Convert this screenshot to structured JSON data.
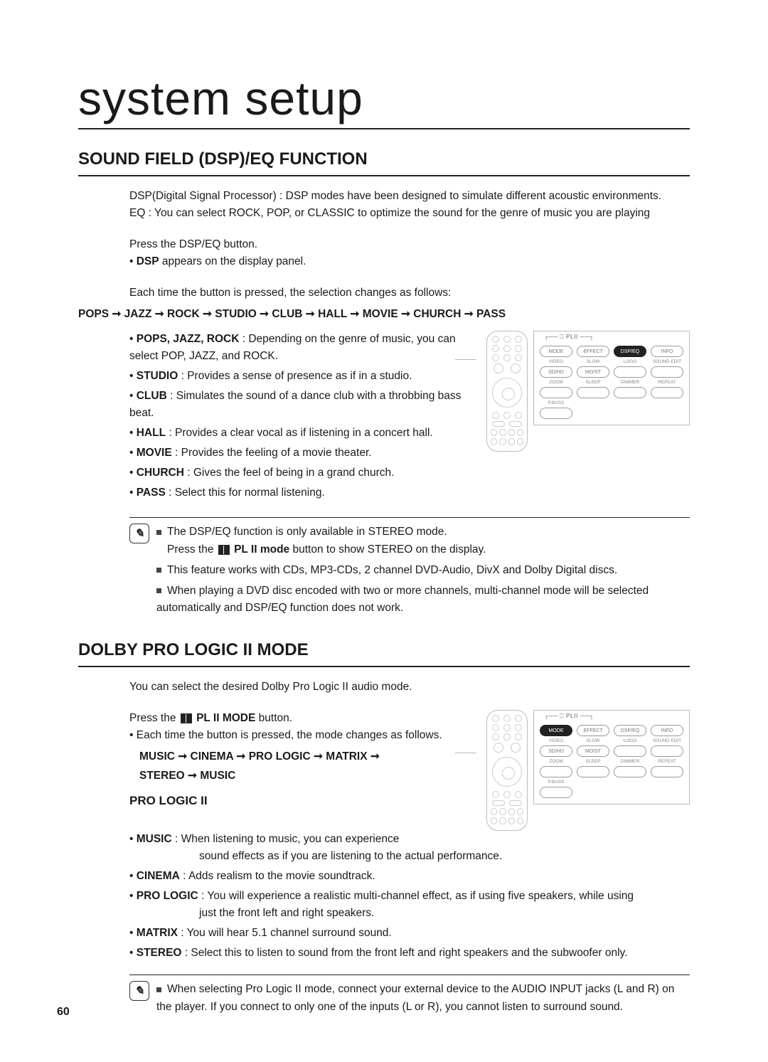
{
  "page": {
    "title": "system setup",
    "number": "60"
  },
  "sec1": {
    "heading": "SOUND FIELD (DSP)/EQ FUNCTION",
    "intro1": "DSP(Digital Signal Processor) : DSP modes have been designed to simulate different acoustic environments.",
    "intro2": "EQ : You can select ROCK, POP, or CLASSIC to optimize the sound for the genre of music you are playing",
    "step1": "Press the DSP/EQ button.",
    "dsp_label": "DSP",
    "dsp_text": " appears on the display panel.",
    "each_time": "Each time the button is pressed, the selection changes as follows:",
    "seq": "POPS ➞ JAZZ  ➞ ROCK ➞ STUDIO ➞ CLUB ➞ HALL ➞ MOVIE ➞ CHURCH ➞ PASS",
    "modes": [
      {
        "name": "POPS, JAZZ, ROCK",
        "desc": " : Depending on the genre of music, you can select POP, JAZZ, and ROCK."
      },
      {
        "name": "STUDIO",
        "desc": " : Provides a sense of presence as if in a studio."
      },
      {
        "name": "CLUB",
        "desc": " : Simulates the sound of a dance club with a throbbing bass beat."
      },
      {
        "name": "HALL",
        "desc": " : Provides a clear vocal as if listening in a concert hall."
      },
      {
        "name": "MOVIE",
        "desc": " : Provides the feeling of a movie theater."
      },
      {
        "name": "CHURCH",
        "desc": " : Gives the feel of being in a grand church."
      },
      {
        "name": "PASS",
        "desc": " : Select this for normal listening."
      }
    ],
    "notes": {
      "n1a": "The DSP/EQ function is only available in STEREO mode.",
      "n1b_pre": "Press the ",
      "n1b_bold": " PL II mode",
      "n1b_post": " button to show STEREO on the display.",
      "n2": "This feature works with CDs, MP3-CDs, 2 channel DVD-Audio, DivX and Dolby Digital discs.",
      "n3": "When playing a DVD disc encoded with two or more channels, multi-channel mode will be selected automatically and DSP/EQ function does not work."
    }
  },
  "sec2": {
    "heading": "DOLBY PRO LOGIC II MODE",
    "intro": "You can select the desired Dolby Pro Logic II audio mode.",
    "press_pre": "Press the ",
    "press_bold": " PL II MODE",
    "press_post": " button.",
    "each_time": "Each time the button is pressed, the mode changes as follows.",
    "seq1": "MUSIC ➞ CINEMA ➞ PRO LOGIC ➞  MATRIX ➞",
    "seq2": "STEREO ➞  MUSIC",
    "sub": "PRO LOGIC II",
    "modes": [
      {
        "name": "MUSIC",
        "desc": " : When listening to music, you can experience",
        "desc2": "sound effects as if you are listening to the actual performance."
      },
      {
        "name": "CINEMA",
        "desc": " : Adds realism to the movie soundtrack."
      },
      {
        "name": "PRO LOGIC",
        "desc": " : You will experience a realistic multi-channel effect, as if using five speakers, while using",
        "desc2": "just the front left and right speakers."
      },
      {
        "name": "MATRIX",
        "desc": " : You will hear 5.1 channel surround sound."
      },
      {
        "name": "STEREO",
        "desc": " : Select this to listen to sound from the front left and right speakers and the subwoofer only."
      }
    ],
    "note": "When selecting Pro Logic II mode, connect your external device to the AUDIO INPUT jacks (L and R) on the player. If you connect to only one of the inputs (L or R), you cannot listen to surround sound."
  },
  "zoom1": {
    "bracket": "┌── ⎕ PLII ──┐",
    "row_labels_top": [
      "",
      "",
      "",
      ""
    ],
    "row1": [
      "MODE",
      "EFFECT",
      "DSP/EQ",
      "INFO"
    ],
    "row_labels_mid": [
      "VIDEO",
      "SLOW",
      "LOGO",
      "SOUND EDIT"
    ],
    "row2": [
      "SD/HD",
      "MO/ST",
      "",
      ""
    ],
    "row_labels_bot": [
      "ZOOM",
      "SLEEP",
      "DIMMER",
      "REPEAT"
    ],
    "row3": [
      "",
      "",
      "",
      ""
    ],
    "row4_label": [
      "P.BASS",
      "",
      "",
      ""
    ],
    "row4": [
      "",
      "",
      "",
      ""
    ],
    "active_index": 2
  },
  "zoom2": {
    "bracket": "┌── ⎕ PLII ──┐",
    "row1": [
      "MODE",
      "EFFECT",
      "DSP/EQ",
      "INFO"
    ],
    "row_labels_mid": [
      "VIDEO",
      "SLOW",
      "LOGO",
      "SOUND EDIT"
    ],
    "row2": [
      "SD/HD",
      "MO/ST",
      "",
      ""
    ],
    "row_labels_bot": [
      "ZOOM",
      "SLEEP",
      "DIMMER",
      "REPEAT"
    ],
    "row3": [
      "",
      "",
      "",
      ""
    ],
    "row4_label": [
      "P.BASS",
      "",
      "",
      ""
    ],
    "row4": [
      "",
      "",
      "",
      ""
    ],
    "active_index": 0
  }
}
